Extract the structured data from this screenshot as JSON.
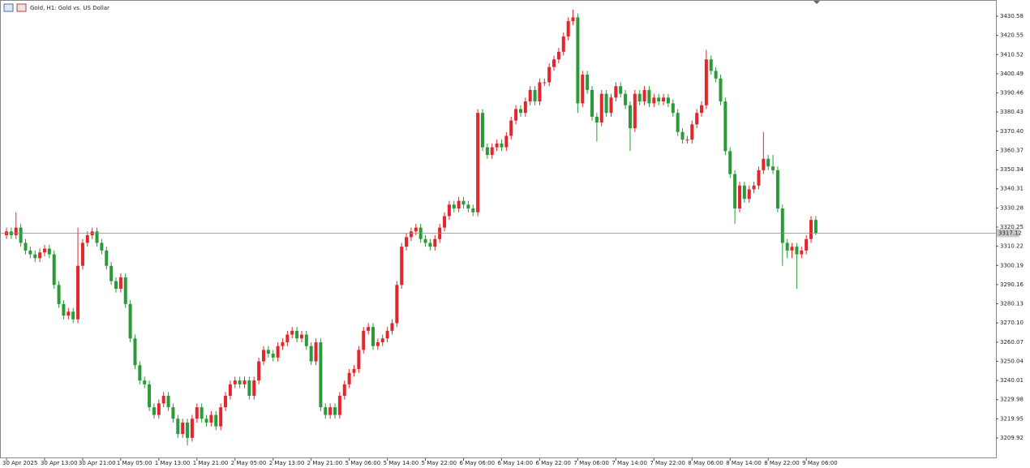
{
  "chart_data": {
    "type": "candlestick",
    "title": "Gold, H1: Gold vs. US Dollar",
    "up_color": "#e3262b",
    "down_color": "#2b9a38",
    "categories": [
      "30 Apr 2025",
      null,
      null,
      null,
      null,
      null,
      null,
      null,
      "30 Apr 13:00",
      null,
      null,
      null,
      null,
      null,
      null,
      null,
      "30 Apr 21:00",
      null,
      null,
      null,
      null,
      null,
      null,
      null,
      "1 May 05:00",
      null,
      null,
      null,
      null,
      null,
      null,
      null,
      "1 May 13:00",
      null,
      null,
      null,
      null,
      null,
      null,
      null,
      "1 May 21:00",
      null,
      null,
      null,
      null,
      null,
      null,
      null,
      "2 May 05:00",
      null,
      null,
      null,
      null,
      null,
      null,
      null,
      "2 May 13:00",
      null,
      null,
      null,
      null,
      null,
      null,
      null,
      "2 May 21:00",
      null,
      null,
      null,
      null,
      null,
      null,
      null,
      "5 May 06:00",
      null,
      null,
      null,
      null,
      null,
      null,
      null,
      "5 May 14:00",
      null,
      null,
      null,
      null,
      null,
      null,
      null,
      "5 May 22:00",
      null,
      null,
      null,
      null,
      null,
      null,
      null,
      "6 May 06:00",
      null,
      null,
      null,
      null,
      null,
      null,
      null,
      "6 May 14:00",
      null,
      null,
      null,
      null,
      null,
      null,
      null,
      "6 May 22:00",
      null,
      null,
      null,
      null,
      null,
      null,
      null,
      "7 May 06:00",
      null,
      null,
      null,
      null,
      null,
      null,
      null,
      "7 May 14:00",
      null,
      null,
      null,
      null,
      null,
      null,
      null,
      "7 May 22:00",
      null,
      null,
      null,
      null,
      null,
      null,
      null,
      "8 May 06:00",
      null,
      null,
      null,
      null,
      null,
      null,
      null,
      "8 May 14:00",
      null,
      null,
      null,
      null,
      null,
      null,
      null,
      "8 May 22:00",
      null,
      null,
      null,
      null,
      null,
      null,
      null,
      "9 May 06:00",
      null,
      null
    ],
    "open": [
      3316,
      3318,
      3316,
      3320,
      3312,
      3308,
      3306,
      3304,
      3307,
      3309,
      3306,
      3290,
      3280,
      3274,
      3276,
      3272,
      3300,
      3312,
      3316,
      3318,
      3312,
      3308,
      3300,
      3292,
      3288,
      3294,
      3280,
      3262,
      3248,
      3240,
      3238,
      3226,
      3222,
      3228,
      3232,
      3226,
      3220,
      3212,
      3218,
      3210,
      3220,
      3226,
      3220,
      3218,
      3222,
      3216,
      3226,
      3232,
      3238,
      3240,
      3238,
      3240,
      3232,
      3240,
      3250,
      3256,
      3254,
      3252,
      3258,
      3260,
      3264,
      3266,
      3262,
      3264,
      3258,
      3250,
      3260,
      3226,
      3222,
      3226,
      3222,
      3232,
      3238,
      3244,
      3246,
      3256,
      3266,
      3268,
      3258,
      3260,
      3262,
      3266,
      3270,
      3290,
      3310,
      3315,
      3318,
      3320,
      3314,
      3312,
      3310,
      3314,
      3320,
      3326,
      3332,
      3330,
      3334,
      3332,
      3330,
      3328,
      3380,
      3362,
      3358,
      3362,
      3364,
      3362,
      3368,
      3376,
      3382,
      3380,
      3386,
      3392,
      3386,
      3396,
      3396,
      3404,
      3408,
      3412,
      3420,
      3428,
      3430,
      3385,
      3400,
      3392,
      3378,
      3375,
      3390,
      3380,
      3388,
      3394,
      3390,
      3384,
      3372,
      3390,
      3386,
      3392,
      3385,
      3388,
      3386,
      3388,
      3385,
      3380,
      3370,
      3366,
      3366,
      3374,
      3380,
      3384,
      3408,
      3402,
      3398,
      3386,
      3360,
      3348,
      3330,
      3342,
      3335,
      3340,
      3342,
      3350,
      3356,
      3352,
      3350,
      3330,
      3312,
      3308,
      3310,
      3306,
      3308,
      3314,
      3324
    ],
    "high": [
      3320,
      3320,
      3328,
      3322,
      3314,
      3310,
      3308,
      3309,
      3311,
      3311,
      3308,
      3292,
      3282,
      3278,
      3278,
      3320,
      3314,
      3318,
      3320,
      3320,
      3314,
      3310,
      3302,
      3294,
      3296,
      3296,
      3282,
      3264,
      3250,
      3242,
      3240,
      3228,
      3230,
      3234,
      3234,
      3228,
      3222,
      3220,
      3220,
      3222,
      3228,
      3228,
      3222,
      3224,
      3224,
      3228,
      3234,
      3240,
      3242,
      3242,
      3242,
      3242,
      3242,
      3252,
      3258,
      3258,
      3256,
      3260,
      3262,
      3266,
      3268,
      3268,
      3266,
      3266,
      3260,
      3262,
      3262,
      3228,
      3228,
      3228,
      3234,
      3240,
      3246,
      3248,
      3258,
      3268,
      3270,
      3270,
      3262,
      3264,
      3268,
      3272,
      3292,
      3312,
      3317,
      3320,
      3322,
      3322,
      3316,
      3314,
      3316,
      3322,
      3328,
      3334,
      3334,
      3336,
      3336,
      3334,
      3332,
      3382,
      3382,
      3364,
      3364,
      3366,
      3366,
      3370,
      3378,
      3384,
      3384,
      3388,
      3394,
      3394,
      3398,
      3398,
      3406,
      3410,
      3414,
      3422,
      3430,
      3434,
      3432,
      3402,
      3402,
      3394,
      3380,
      3392,
      3392,
      3390,
      3396,
      3396,
      3392,
      3386,
      3392,
      3392,
      3394,
      3394,
      3390,
      3390,
      3390,
      3390,
      3387,
      3382,
      3372,
      3368,
      3376,
      3382,
      3386,
      3413,
      3410,
      3404,
      3400,
      3388,
      3362,
      3350,
      3344,
      3344,
      3342,
      3344,
      3352,
      3370,
      3358,
      3358,
      3352,
      3332,
      3314,
      3312,
      3312,
      3310,
      3316,
      3326,
      3326
    ],
    "low": [
      3314,
      3314,
      3314,
      3310,
      3306,
      3304,
      3302,
      3302,
      3305,
      3304,
      3288,
      3278,
      3272,
      3272,
      3270,
      3270,
      3298,
      3310,
      3314,
      3310,
      3306,
      3298,
      3290,
      3286,
      3286,
      3278,
      3260,
      3246,
      3238,
      3236,
      3224,
      3220,
      3220,
      3226,
      3224,
      3218,
      3210,
      3210,
      3206,
      3208,
      3218,
      3218,
      3216,
      3216,
      3214,
      3214,
      3224,
      3230,
      3236,
      3236,
      3236,
      3230,
      3230,
      3238,
      3248,
      3252,
      3250,
      3250,
      3256,
      3258,
      3262,
      3260,
      3260,
      3256,
      3248,
      3248,
      3224,
      3220,
      3220,
      3220,
      3220,
      3230,
      3236,
      3242,
      3244,
      3254,
      3264,
      3256,
      3256,
      3258,
      3260,
      3264,
      3268,
      3288,
      3308,
      3313,
      3316,
      3312,
      3310,
      3308,
      3308,
      3312,
      3318,
      3324,
      3328,
      3328,
      3330,
      3328,
      3326,
      3326,
      3360,
      3356,
      3356,
      3360,
      3360,
      3360,
      3366,
      3374,
      3378,
      3378,
      3384,
      3384,
      3384,
      3394,
      3394,
      3402,
      3406,
      3410,
      3418,
      3426,
      3380,
      3383,
      3390,
      3376,
      3365,
      3373,
      3378,
      3378,
      3386,
      3388,
      3382,
      3360,
      3370,
      3384,
      3384,
      3383,
      3383,
      3384,
      3384,
      3383,
      3378,
      3368,
      3364,
      3364,
      3364,
      3372,
      3378,
      3382,
      3400,
      3396,
      3384,
      3358,
      3346,
      3322,
      3328,
      3333,
      3333,
      3338,
      3340,
      3348,
      3350,
      3348,
      3328,
      3300,
      3304,
      3304,
      3288,
      3304,
      3306,
      3312,
      3316
    ],
    "close": [
      3318,
      3316,
      3320,
      3312,
      3308,
      3306,
      3304,
      3307,
      3309,
      3306,
      3290,
      3280,
      3274,
      3276,
      3272,
      3300,
      3312,
      3316,
      3318,
      3312,
      3308,
      3300,
      3292,
      3288,
      3294,
      3280,
      3262,
      3248,
      3240,
      3238,
      3226,
      3222,
      3228,
      3232,
      3226,
      3220,
      3212,
      3218,
      3210,
      3220,
      3226,
      3220,
      3218,
      3222,
      3216,
      3226,
      3232,
      3238,
      3240,
      3238,
      3240,
      3232,
      3240,
      3250,
      3256,
      3254,
      3252,
      3258,
      3260,
      3264,
      3266,
      3262,
      3264,
      3258,
      3250,
      3260,
      3226,
      3222,
      3226,
      3222,
      3232,
      3238,
      3244,
      3246,
      3256,
      3266,
      3268,
      3258,
      3260,
      3262,
      3266,
      3270,
      3290,
      3310,
      3315,
      3318,
      3320,
      3314,
      3312,
      3310,
      3314,
      3320,
      3326,
      3332,
      3330,
      3334,
      3332,
      3330,
      3328,
      3380,
      3362,
      3358,
      3362,
      3364,
      3362,
      3368,
      3376,
      3382,
      3380,
      3386,
      3392,
      3386,
      3396,
      3396,
      3404,
      3408,
      3412,
      3420,
      3428,
      3430,
      3385,
      3400,
      3392,
      3378,
      3375,
      3390,
      3380,
      3388,
      3394,
      3390,
      3384,
      3372,
      3390,
      3386,
      3392,
      3385,
      3388,
      3386,
      3388,
      3385,
      3380,
      3370,
      3366,
      3366,
      3374,
      3380,
      3384,
      3408,
      3402,
      3398,
      3386,
      3360,
      3348,
      3330,
      3342,
      3335,
      3340,
      3342,
      3350,
      3356,
      3352,
      3350,
      3330,
      3312,
      3308,
      3310,
      3306,
      3308,
      3314,
      3324,
      3317.12
    ],
    "ylim": [
      3199.31,
      3438.22
    ],
    "yticks": [
      3430.58,
      3420.55,
      3410.52,
      3400.49,
      3390.46,
      3380.43,
      {
        "value": 3370.4,
        "label": "3370.40"
      },
      3360.37,
      3350.34,
      3340.31,
      3330.28,
      3320.25,
      3310.22,
      3300.19,
      3290.16,
      3280.13,
      {
        "value": 3270.1,
        "label": "3270.10"
      },
      3260.07,
      3250.04,
      3240.01,
      3229.98,
      3219.95,
      3209.92
    ]
  }
}
